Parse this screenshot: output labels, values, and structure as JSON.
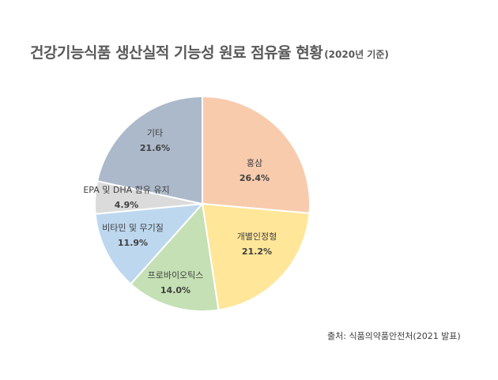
{
  "title": {
    "main": "건강기능식품 생산실적 기능성 원료 점유율 현황",
    "sub": "(2020년 기준)"
  },
  "source": "출처: 식품의약품안전처(2021 발표)",
  "chart_data": {
    "type": "pie",
    "title": "건강기능식품 생산실적 기능성 원료 점유율 현황(2020년 기준)",
    "start": "12 o'clock",
    "direction": "clockwise",
    "slices": [
      {
        "label": "홍삼",
        "value": 26.4,
        "value_label": "26.4%",
        "color": "#f8cbad"
      },
      {
        "label": "개별인정형",
        "value": 21.2,
        "value_label": "21.2%",
        "color": "#ffe699"
      },
      {
        "label": "프로바이오틱스",
        "value": 14.0,
        "value_label": "14.0%",
        "color": "#c5e0b4"
      },
      {
        "label": "비타민 및 무기질",
        "value": 11.9,
        "value_label": "11.9%",
        "color": "#bdd7ee"
      },
      {
        "label": "EPA 및 DHA 함유 유지",
        "value": 4.9,
        "value_label": "4.9%",
        "color": "#dbdbdb"
      },
      {
        "label": "기타",
        "value": 21.6,
        "value_label": "21.6%",
        "color": "#acb9ca"
      }
    ]
  }
}
